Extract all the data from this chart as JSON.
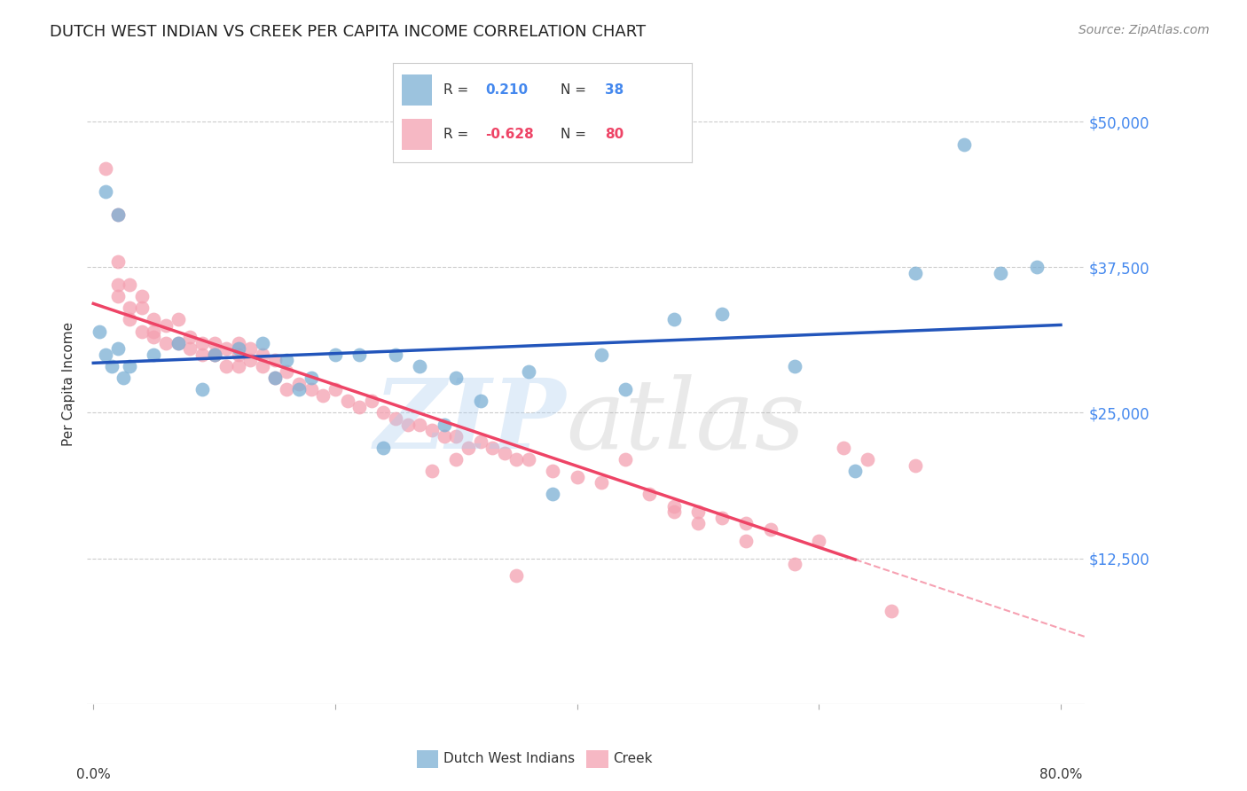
{
  "title": "DUTCH WEST INDIAN VS CREEK PER CAPITA INCOME CORRELATION CHART",
  "source": "Source: ZipAtlas.com",
  "ylabel": "Per Capita Income",
  "y_ticks": [
    0,
    12500,
    25000,
    37500,
    50000
  ],
  "y_tick_labels": [
    "",
    "$12,500",
    "$25,000",
    "$37,500",
    "$50,000"
  ],
  "xlim": [
    0.0,
    0.8
  ],
  "ylim": [
    0,
    55000
  ],
  "blue_R": "0.210",
  "blue_N": "38",
  "pink_R": "-0.628",
  "pink_N": "80",
  "blue_color": "#7BAFD4",
  "pink_color": "#F4A0B0",
  "line_blue_color": "#2255BB",
  "line_pink_color": "#EE4466",
  "bg_color": "#FFFFFF",
  "grid_color": "#CCCCCC",
  "axis_label_color": "#4488EE",
  "legend_label_blue": "Dutch West Indians",
  "legend_label_pink": "Creek",
  "blue_x": [
    0.005,
    0.01,
    0.015,
    0.02,
    0.025,
    0.03,
    0.05,
    0.07,
    0.09,
    0.1,
    0.12,
    0.14,
    0.15,
    0.16,
    0.17,
    0.18,
    0.2,
    0.22,
    0.24,
    0.25,
    0.27,
    0.29,
    0.3,
    0.32,
    0.36,
    0.38,
    0.42,
    0.44,
    0.48,
    0.52,
    0.58,
    0.63,
    0.68,
    0.72,
    0.75,
    0.78,
    0.01,
    0.02
  ],
  "blue_y": [
    32000,
    30000,
    29000,
    30500,
    28000,
    29000,
    30000,
    31000,
    27000,
    30000,
    30500,
    31000,
    28000,
    29500,
    27000,
    28000,
    30000,
    30000,
    22000,
    30000,
    29000,
    24000,
    28000,
    26000,
    28500,
    18000,
    30000,
    27000,
    33000,
    33500,
    29000,
    20000,
    37000,
    48000,
    37000,
    37500,
    44000,
    42000
  ],
  "pink_x": [
    0.01,
    0.02,
    0.02,
    0.02,
    0.03,
    0.03,
    0.04,
    0.04,
    0.05,
    0.05,
    0.06,
    0.06,
    0.07,
    0.07,
    0.08,
    0.08,
    0.09,
    0.09,
    0.1,
    0.1,
    0.11,
    0.11,
    0.12,
    0.12,
    0.13,
    0.13,
    0.14,
    0.14,
    0.15,
    0.15,
    0.16,
    0.16,
    0.17,
    0.18,
    0.19,
    0.2,
    0.21,
    0.22,
    0.23,
    0.24,
    0.25,
    0.26,
    0.27,
    0.28,
    0.29,
    0.3,
    0.31,
    0.32,
    0.33,
    0.34,
    0.35,
    0.36,
    0.38,
    0.4,
    0.42,
    0.44,
    0.46,
    0.48,
    0.5,
    0.52,
    0.54,
    0.56,
    0.58,
    0.6,
    0.62,
    0.64,
    0.66,
    0.68,
    0.3,
    0.35,
    0.28,
    0.02,
    0.03,
    0.04,
    0.05,
    0.54,
    0.48,
    0.5,
    0.1,
    0.12
  ],
  "pink_y": [
    46000,
    42000,
    38000,
    36000,
    36000,
    34000,
    35000,
    34000,
    33000,
    32000,
    32500,
    31000,
    33000,
    31000,
    31500,
    30500,
    31000,
    30000,
    31000,
    30000,
    30500,
    29000,
    31000,
    30000,
    30500,
    29500,
    30000,
    29000,
    29500,
    28000,
    28500,
    27000,
    27500,
    27000,
    26500,
    27000,
    26000,
    25500,
    26000,
    25000,
    24500,
    24000,
    24000,
    23500,
    23000,
    23000,
    22000,
    22500,
    22000,
    21500,
    21000,
    21000,
    20000,
    19500,
    19000,
    21000,
    18000,
    17000,
    16500,
    16000,
    15500,
    15000,
    12000,
    14000,
    22000,
    21000,
    8000,
    20500,
    21000,
    11000,
    20000,
    35000,
    33000,
    32000,
    31500,
    14000,
    16500,
    15500,
    30000,
    29000
  ]
}
